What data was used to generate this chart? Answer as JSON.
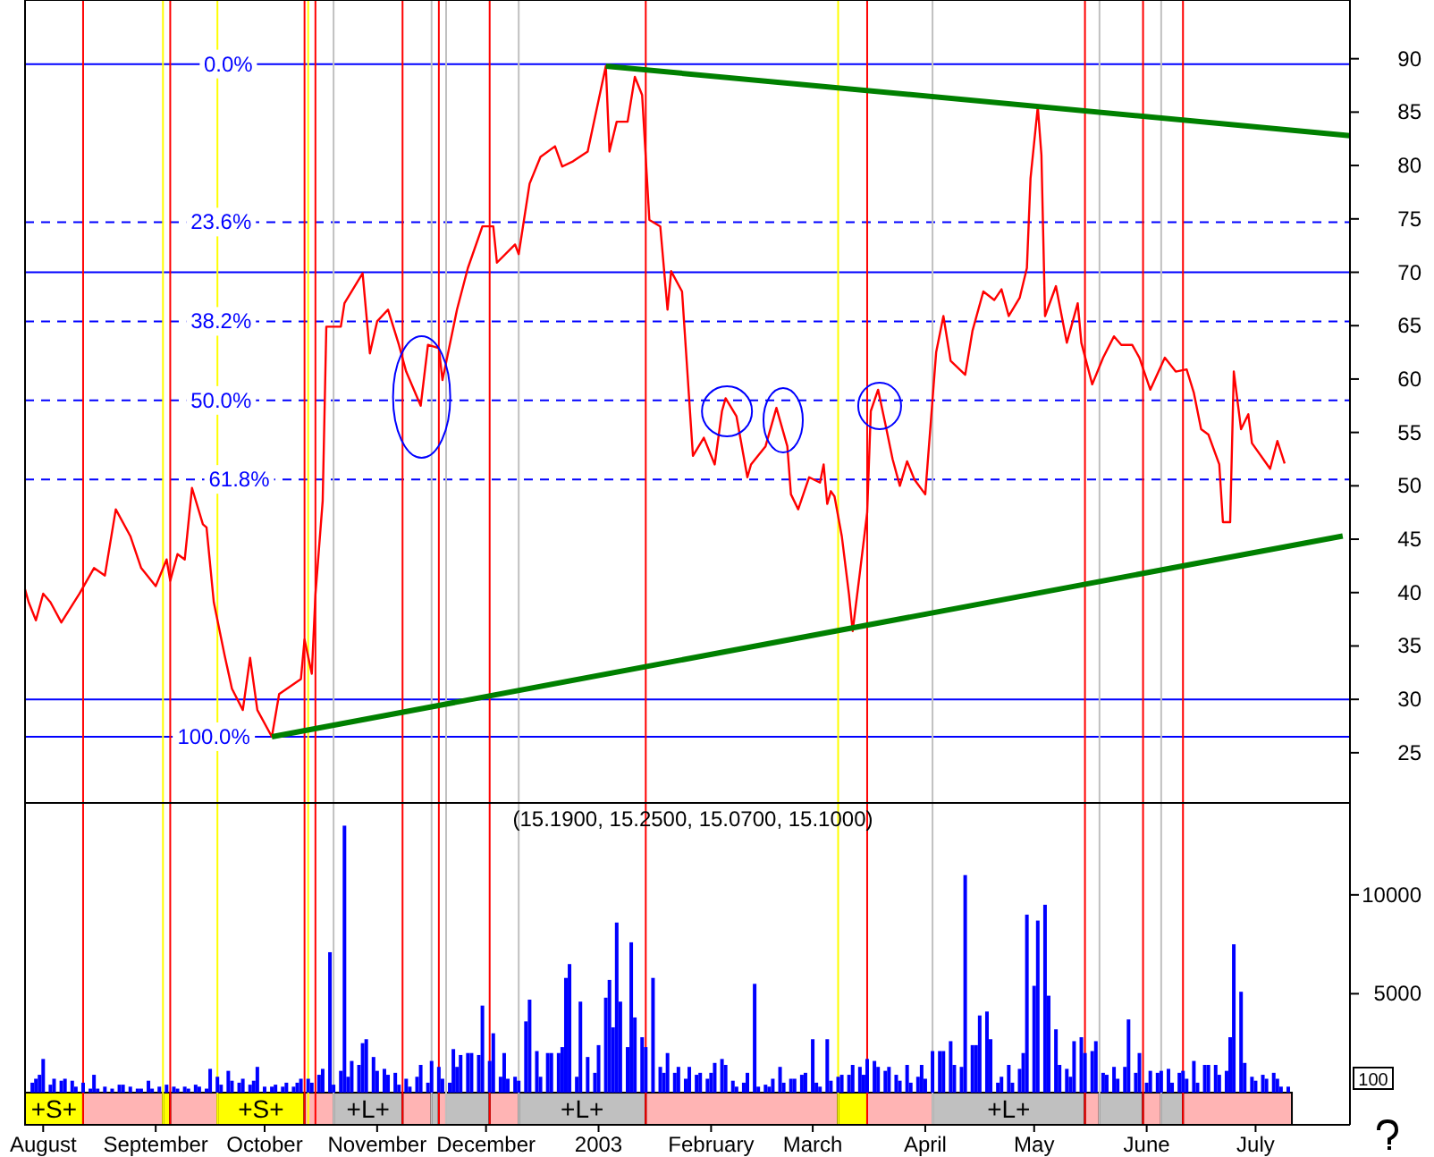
{
  "chart_data": [
    {
      "type": "line",
      "xlim": [
        "2002-07-27",
        "2003-07-27"
      ],
      "ylim": [
        20.3,
        95.5
      ],
      "yticks": [
        25,
        30,
        35,
        40,
        45,
        50,
        55,
        60,
        65,
        70,
        75,
        80,
        85,
        90
      ],
      "tick_labels": "y",
      "annotations": [
        {
          "text": "0.0%",
          "x": "2002-09-21",
          "y": 89.5
        },
        {
          "text": "23.6%",
          "x": "2002-09-19",
          "y": 74.7
        },
        {
          "text": "38.2%",
          "x": "2002-09-19",
          "y": 65.4
        },
        {
          "text": "50.0%",
          "x": "2002-09-19",
          "y": 58.0
        },
        {
          "text": "61.8%",
          "x": "2002-09-24",
          "y": 50.6
        },
        {
          "text": "100.0%",
          "x": "2002-09-17",
          "y": 26.5
        }
      ],
      "series": [
        {
          "color": "#ff0000",
          "x": [
            "2002-07-27",
            "2002-07-28",
            "2002-07-30",
            "2002-08-01",
            "2002-08-03",
            "2002-08-06",
            "2002-08-11",
            "2002-08-15",
            "2002-08-18",
            "2002-08-21",
            "2002-08-25",
            "2002-08-28",
            "2002-09-01",
            "2002-09-04",
            "2002-09-05",
            "2002-09-07",
            "2002-09-09",
            "2002-09-11",
            "2002-09-14",
            "2002-09-15",
            "2002-09-17",
            "2002-09-20",
            "2002-09-22",
            "2002-09-25",
            "2002-09-27",
            "2002-09-29",
            "2002-10-03",
            "2002-10-05",
            "2002-10-11",
            "2002-10-12",
            "2002-10-14",
            "2002-10-15",
            "2002-10-17",
            "2002-10-18",
            "2002-10-22",
            "2002-10-23",
            "2002-10-28",
            "2002-10-30",
            "2002-11-01",
            "2002-11-04",
            "2002-11-07",
            "2002-11-09",
            "2002-11-13",
            "2002-11-15",
            "2002-11-18",
            "2002-11-19",
            "2002-11-23",
            "2002-11-26",
            "2002-11-30",
            "2002-12-03",
            "2002-12-04",
            "2002-12-09",
            "2002-12-10",
            "2002-12-13",
            "2002-12-16",
            "2002-12-20",
            "2002-12-22",
            "2002-12-25",
            "2002-12-29",
            "2003-01-03",
            "2003-01-04",
            "2003-01-06",
            "2003-01-09",
            "2003-01-11",
            "2003-01-13",
            "2003-01-15",
            "2003-01-18",
            "2003-01-20",
            "2003-01-21",
            "2003-01-24",
            "2003-01-27",
            "2003-01-30",
            "2003-02-02",
            "2003-02-04",
            "2003-02-05",
            "2003-02-08",
            "2003-02-11",
            "2003-02-12",
            "2003-02-16",
            "2003-02-19",
            "2003-02-22",
            "2003-02-23",
            "2003-02-25",
            "2003-02-28",
            "2003-03-03",
            "2003-03-04",
            "2003-03-05",
            "2003-03-06",
            "2003-03-07",
            "2003-03-09",
            "2003-03-11",
            "2003-03-12",
            "2003-03-14",
            "2003-03-16",
            "2003-03-17",
            "2003-03-19",
            "2003-03-21",
            "2003-03-23",
            "2003-03-25",
            "2003-03-27",
            "2003-03-29",
            "2003-04-01",
            "2003-04-04",
            "2003-04-06",
            "2003-04-08",
            "2003-04-12",
            "2003-04-14",
            "2003-04-17",
            "2003-04-20",
            "2003-04-22",
            "2003-04-24",
            "2003-04-27",
            "2003-04-29",
            "2003-04-30",
            "2003-05-02",
            "2003-05-03",
            "2003-05-04",
            "2003-05-07",
            "2003-05-10",
            "2003-05-13",
            "2003-05-14",
            "2003-05-17",
            "2003-05-20",
            "2003-05-23",
            "2003-05-25",
            "2003-05-28",
            "2003-05-30",
            "2003-06-02",
            "2003-06-06",
            "2003-06-09",
            "2003-06-12",
            "2003-06-14",
            "2003-06-16",
            "2003-06-18",
            "2003-06-21",
            "2003-06-22",
            "2003-06-24",
            "2003-06-25",
            "2003-06-27",
            "2003-06-29",
            "2003-06-30",
            "2003-07-05",
            "2003-07-07",
            "2003-07-09"
          ],
          "values": [
            40.3,
            39.1,
            37.4,
            39.9,
            39.1,
            37.2,
            39.9,
            42.3,
            41.6,
            47.8,
            45.3,
            42.3,
            40.6,
            43.1,
            41.1,
            43.6,
            43.1,
            49.8,
            46.4,
            46.1,
            39.1,
            34.1,
            31.0,
            29.0,
            33.9,
            29.0,
            26.5,
            30.5,
            31.9,
            35.6,
            32.4,
            39.8,
            48.6,
            64.9,
            64.9,
            67.1,
            69.9,
            62.4,
            65.4,
            66.5,
            63.2,
            60.7,
            57.5,
            63.2,
            62.9,
            59.9,
            66.5,
            70.4,
            74.3,
            74.3,
            70.9,
            72.6,
            71.7,
            78.3,
            80.8,
            81.8,
            79.9,
            80.4,
            81.3,
            89.3,
            81.3,
            84.1,
            84.1,
            88.3,
            86.6,
            74.9,
            74.3,
            66.5,
            70.1,
            68.2,
            52.8,
            54.5,
            52.0,
            57.0,
            58.2,
            56.5,
            50.8,
            52.0,
            53.7,
            57.3,
            53.7,
            49.2,
            47.8,
            50.8,
            50.3,
            52.0,
            48.3,
            49.5,
            49.0,
            45.3,
            39.8,
            36.4,
            41.9,
            47.5,
            57.0,
            59.0,
            55.8,
            52.5,
            50.0,
            52.3,
            50.6,
            49.2,
            62.5,
            65.9,
            61.7,
            60.4,
            64.5,
            68.2,
            67.4,
            68.4,
            65.9,
            67.6,
            70.4,
            78.8,
            85.5,
            81.0,
            65.9,
            68.7,
            63.4,
            67.1,
            63.4,
            59.5,
            62.0,
            64.0,
            63.2,
            63.2,
            62.0,
            59.0,
            62.0,
            60.7,
            60.9,
            58.7,
            55.3,
            54.8,
            52.0,
            46.6,
            46.6,
            60.7,
            55.3,
            56.7,
            54.0,
            51.6,
            54.2,
            52.1
          ]
        },
        {
          "color": "#008000",
          "x": [
            "2003-01-03",
            "2003-07-27"
          ],
          "values": [
            89.3,
            82.8
          ]
        },
        {
          "color": "#008000",
          "x": [
            "2002-10-03",
            "2003-07-25"
          ],
          "values": [
            26.5,
            45.3
          ]
        }
      ],
      "ref_lines": [
        {
          "axis": "y",
          "value": 89.5,
          "color": "#0000ff",
          "line_style": "solid"
        },
        {
          "axis": "y",
          "value": 74.7,
          "color": "#0000ff",
          "line_style": "dashed"
        },
        {
          "axis": "y",
          "value": 65.4,
          "color": "#0000ff",
          "line_style": "dashed"
        },
        {
          "axis": "y",
          "value": 58.0,
          "color": "#0000ff",
          "line_style": "dashed"
        },
        {
          "axis": "y",
          "value": 50.6,
          "color": "#0000ff",
          "line_style": "dashed"
        },
        {
          "axis": "y",
          "value": 26.5,
          "color": "#0000ff",
          "line_style": "solid"
        },
        {
          "axis": "y",
          "value": 70,
          "color": "#0000ff",
          "line_style": "solid"
        },
        {
          "axis": "y",
          "value": 30,
          "color": "#0000ff",
          "line_style": "solid"
        },
        {
          "axis": "x",
          "value": "2002-08-12",
          "color": "#ff0000"
        },
        {
          "axis": "x",
          "value": "2002-09-03",
          "color": "#ffff00"
        },
        {
          "axis": "x",
          "value": "2002-09-05",
          "color": "#ff0000"
        },
        {
          "axis": "x",
          "value": "2002-09-18",
          "color": "#ffff00"
        },
        {
          "axis": "x",
          "value": "2002-10-12",
          "color": "#ff0000"
        },
        {
          "axis": "x",
          "value": "2002-10-13",
          "color": "#ffff00"
        },
        {
          "axis": "x",
          "value": "2002-10-15",
          "color": "#ff0000"
        },
        {
          "axis": "x",
          "value": "2002-10-20",
          "color": "#c0c0c0"
        },
        {
          "axis": "x",
          "value": "2002-11-08",
          "color": "#ff0000"
        },
        {
          "axis": "x",
          "value": "2002-11-16",
          "color": "#c0c0c0"
        },
        {
          "axis": "x",
          "value": "2002-11-18",
          "color": "#ff0000"
        },
        {
          "axis": "x",
          "value": "2002-11-20",
          "color": "#c0c0c0"
        },
        {
          "axis": "x",
          "value": "2002-12-02",
          "color": "#ff0000"
        },
        {
          "axis": "x",
          "value": "2002-12-10",
          "color": "#c0c0c0"
        },
        {
          "axis": "x",
          "value": "2003-01-14",
          "color": "#ff0000"
        },
        {
          "axis": "x",
          "value": "2003-03-08",
          "color": "#ffff00"
        },
        {
          "axis": "x",
          "value": "2003-03-16",
          "color": "#ff0000"
        },
        {
          "axis": "x",
          "value": "2003-04-03",
          "color": "#c0c0c0"
        },
        {
          "axis": "x",
          "value": "2003-05-15",
          "color": "#ff0000"
        },
        {
          "axis": "x",
          "value": "2003-05-19",
          "color": "#c0c0c0"
        },
        {
          "axis": "x",
          "value": "2003-05-31",
          "color": "#ff0000"
        },
        {
          "axis": "x",
          "value": "2003-06-05",
          "color": "#c0c0c0"
        },
        {
          "axis": "x",
          "value": "2003-06-11",
          "color": "#ff0000"
        }
      ]
    },
    {
      "type": "bar",
      "title": "(15.1900, 15.2500, 15.0700, 15.1000)",
      "xlim": [
        "2002-07-27",
        "2003-07-27"
      ],
      "ylim": [
        -1630,
        14650
      ],
      "yticks": [
        5000,
        10000
      ],
      "annotations": [
        "100"
      ],
      "series": [
        {
          "color": "#0000ff",
          "x": [
            "2002-07-29",
            "2002-07-30",
            "2002-07-31",
            "2002-08-01",
            "2002-08-03",
            "2002-08-04",
            "2002-08-06",
            "2002-08-07",
            "2002-08-09",
            "2002-08-10",
            "2002-08-12",
            "2002-08-14",
            "2002-08-15",
            "2002-08-16",
            "2002-08-18",
            "2002-08-20",
            "2002-08-22",
            "2002-08-23",
            "2002-08-25",
            "2002-08-27",
            "2002-08-28",
            "2002-08-30",
            "2002-08-31",
            "2002-09-02",
            "2002-09-04",
            "2002-09-06",
            "2002-09-07",
            "2002-09-09",
            "2002-09-10",
            "2002-09-12",
            "2002-09-13",
            "2002-09-15",
            "2002-09-16",
            "2002-09-18",
            "2002-09-19",
            "2002-09-21",
            "2002-09-22",
            "2002-09-24",
            "2002-09-25",
            "2002-09-27",
            "2002-09-28",
            "2002-09-29",
            "2002-10-01",
            "2002-10-03",
            "2002-10-04",
            "2002-10-06",
            "2002-10-07",
            "2002-10-09",
            "2002-10-10",
            "2002-10-11",
            "2002-10-13",
            "2002-10-14",
            "2002-10-16",
            "2002-10-17",
            "2002-10-19",
            "2002-10-20",
            "2002-10-22",
            "2002-10-23",
            "2002-10-24",
            "2002-10-25",
            "2002-10-27",
            "2002-10-28",
            "2002-10-29",
            "2002-10-31",
            "2002-11-01",
            "2002-11-03",
            "2002-11-04",
            "2002-11-06",
            "2002-11-07",
            "2002-11-09",
            "2002-11-10",
            "2002-11-12",
            "2002-11-13",
            "2002-11-15",
            "2002-11-16",
            "2002-11-18",
            "2002-11-19",
            "2002-11-21",
            "2002-11-22",
            "2002-11-23",
            "2002-11-24",
            "2002-11-26",
            "2002-11-27",
            "2002-11-29",
            "2002-11-30",
            "2002-12-02",
            "2002-12-03",
            "2002-12-05",
            "2002-12-06",
            "2002-12-07",
            "2002-12-09",
            "2002-12-10",
            "2002-12-12",
            "2002-12-13",
            "2002-12-15",
            "2002-12-16",
            "2002-12-18",
            "2002-12-19",
            "2002-12-21",
            "2002-12-22",
            "2002-12-23",
            "2002-12-24",
            "2002-12-26",
            "2002-12-27",
            "2002-12-29",
            "2002-12-31",
            "2003-01-01",
            "2003-01-03",
            "2003-01-04",
            "2003-01-05",
            "2003-01-06",
            "2003-01-07",
            "2003-01-09",
            "2003-01-10",
            "2003-01-11",
            "2003-01-13",
            "2003-01-14",
            "2003-01-16",
            "2003-01-18",
            "2003-01-19",
            "2003-01-20",
            "2003-01-22",
            "2003-01-23",
            "2003-01-25",
            "2003-01-26",
            "2003-01-28",
            "2003-01-29",
            "2003-01-31",
            "2003-02-01",
            "2003-02-02",
            "2003-02-04",
            "2003-02-05",
            "2003-02-07",
            "2003-02-08",
            "2003-02-10",
            "2003-02-11",
            "2003-02-13",
            "2003-02-14",
            "2003-02-16",
            "2003-02-17",
            "2003-02-18",
            "2003-02-20",
            "2003-02-21",
            "2003-02-23",
            "2003-02-24",
            "2003-02-26",
            "2003-02-27",
            "2003-03-01",
            "2003-03-02",
            "2003-03-03",
            "2003-03-05",
            "2003-03-06",
            "2003-03-08",
            "2003-03-09",
            "2003-03-11",
            "2003-03-12",
            "2003-03-14",
            "2003-03-15",
            "2003-03-16",
            "2003-03-18",
            "2003-03-19",
            "2003-03-21",
            "2003-03-22",
            "2003-03-24",
            "2003-03-25",
            "2003-03-27",
            "2003-03-28",
            "2003-03-30",
            "2003-03-31",
            "2003-04-01",
            "2003-04-03",
            "2003-04-05",
            "2003-04-06",
            "2003-04-08",
            "2003-04-09",
            "2003-04-11",
            "2003-04-12",
            "2003-04-14",
            "2003-04-15",
            "2003-04-16",
            "2003-04-18",
            "2003-04-19",
            "2003-04-21",
            "2003-04-22",
            "2003-04-24",
            "2003-04-25",
            "2003-04-27",
            "2003-04-28",
            "2003-04-29",
            "2003-05-01",
            "2003-05-02",
            "2003-05-04",
            "2003-05-05",
            "2003-05-07",
            "2003-05-08",
            "2003-05-10",
            "2003-05-11",
            "2003-05-12",
            "2003-05-14",
            "2003-05-15",
            "2003-05-17",
            "2003-05-18",
            "2003-05-20",
            "2003-05-21",
            "2003-05-23",
            "2003-05-24",
            "2003-05-26",
            "2003-05-27",
            "2003-05-29",
            "2003-05-30",
            "2003-06-01",
            "2003-06-02",
            "2003-06-04",
            "2003-06-05",
            "2003-06-07",
            "2003-06-08",
            "2003-06-10",
            "2003-06-11",
            "2003-06-12",
            "2003-06-14",
            "2003-06-15",
            "2003-06-17",
            "2003-06-18",
            "2003-06-20",
            "2003-06-21",
            "2003-06-23",
            "2003-06-24",
            "2003-06-25",
            "2003-06-27",
            "2003-06-28",
            "2003-06-30",
            "2003-07-01",
            "2003-07-03",
            "2003-07-04",
            "2003-07-06",
            "2003-07-07",
            "2003-07-08",
            "2003-07-10"
          ],
          "values": [
            500,
            700,
            900,
            1700,
            400,
            700,
            600,
            700,
            600,
            300,
            500,
            200,
            900,
            200,
            300,
            200,
            400,
            400,
            300,
            200,
            200,
            600,
            200,
            300,
            400,
            300,
            200,
            300,
            200,
            400,
            300,
            200,
            1200,
            800,
            400,
            1100,
            600,
            500,
            700,
            400,
            600,
            1300,
            300,
            300,
            400,
            300,
            500,
            300,
            500,
            700,
            700,
            500,
            900,
            1200,
            7100,
            400,
            1100,
            13500,
            800,
            1600,
            1400,
            2500,
            2700,
            1800,
            1100,
            1200,
            900,
            1000,
            400,
            700,
            300,
            800,
            1400,
            500,
            1600,
            1300,
            700,
            500,
            2200,
            1300,
            1900,
            2000,
            2000,
            1900,
            4400,
            1600,
            3000,
            800,
            2000,
            700,
            800,
            600,
            3600,
            4700,
            2100,
            800,
            2000,
            2000,
            2000,
            2300,
            5800,
            6500,
            800,
            4600,
            1800,
            1000,
            2400,
            4800,
            5700,
            3300,
            8600,
            4600,
            2300,
            7600,
            3800,
            2800,
            2300,
            5800,
            1300,
            1000,
            2000,
            1000,
            1300,
            700,
            1300,
            900,
            1000,
            700,
            1000,
            1500,
            1700,
            1400,
            600,
            300,
            500,
            1000,
            5500,
            300,
            400,
            300,
            700,
            1300,
            500,
            700,
            700,
            900,
            1000,
            2700,
            500,
            300,
            2700,
            600,
            800,
            900,
            900,
            1400,
            1300,
            900,
            1700,
            1600,
            1300,
            1100,
            1300,
            900,
            600,
            1400,
            500,
            800,
            1400,
            700,
            2100,
            2100,
            2100,
            2600,
            1400,
            1300,
            11000,
            2400,
            2400,
            3900,
            4100,
            2700,
            500,
            800,
            1400,
            500,
            1200,
            2000,
            9000,
            5400,
            8700,
            9500,
            4900,
            3200,
            1400,
            1200,
            800,
            2600,
            2800,
            2000,
            2100,
            2600,
            1000,
            900,
            1300,
            700,
            1300,
            3700,
            1000,
            2000,
            500,
            1100,
            1000,
            1100,
            1200,
            500,
            1000,
            1100,
            700,
            1600,
            500,
            1400,
            1400,
            1400,
            900,
            1100,
            2800,
            7500,
            5100,
            1500,
            800,
            600,
            900,
            700,
            1000,
            700,
            300,
            300
          ]
        }
      ],
      "ref_lines": [
        {
          "axis": "x",
          "value": "2002-08-12",
          "color": "#ff0000"
        },
        {
          "axis": "x",
          "value": "2002-09-03",
          "color": "#ffff00"
        },
        {
          "axis": "x",
          "value": "2002-09-05",
          "color": "#ff0000"
        },
        {
          "axis": "x",
          "value": "2002-09-18",
          "color": "#ffff00"
        },
        {
          "axis": "x",
          "value": "2002-10-12",
          "color": "#ff0000"
        },
        {
          "axis": "x",
          "value": "2002-10-13",
          "color": "#ffff00"
        },
        {
          "axis": "x",
          "value": "2002-10-15",
          "color": "#ff0000"
        },
        {
          "axis": "x",
          "value": "2002-10-20",
          "color": "#c0c0c0"
        },
        {
          "axis": "x",
          "value": "2002-11-08",
          "color": "#ff0000"
        },
        {
          "axis": "x",
          "value": "2002-11-16",
          "color": "#c0c0c0"
        },
        {
          "axis": "x",
          "value": "2002-11-18",
          "color": "#ff0000"
        },
        {
          "axis": "x",
          "value": "2002-11-20",
          "color": "#c0c0c0"
        },
        {
          "axis": "x",
          "value": "2002-12-02",
          "color": "#ff0000"
        },
        {
          "axis": "x",
          "value": "2002-12-10",
          "color": "#c0c0c0"
        },
        {
          "axis": "x",
          "value": "2003-01-14",
          "color": "#ff0000"
        },
        {
          "axis": "x",
          "value": "2003-03-08",
          "color": "#ffff00"
        },
        {
          "axis": "x",
          "value": "2003-03-16",
          "color": "#ff0000"
        },
        {
          "axis": "x",
          "value": "2003-04-03",
          "color": "#c0c0c0"
        },
        {
          "axis": "x",
          "value": "2003-05-15",
          "color": "#ff0000"
        },
        {
          "axis": "x",
          "value": "2003-05-19",
          "color": "#c0c0c0"
        },
        {
          "axis": "x",
          "value": "2003-05-31",
          "color": "#ff0000"
        },
        {
          "axis": "x",
          "value": "2003-06-05",
          "color": "#c0c0c0"
        },
        {
          "axis": "x",
          "value": "2003-06-11",
          "color": "#ff0000"
        }
      ],
      "xticks": [
        {
          "value": "2002-08-01",
          "label": "August"
        },
        {
          "value": "2002-09-01",
          "label": "September"
        },
        {
          "value": "2002-10-01",
          "label": "October"
        },
        {
          "value": "2002-11-01",
          "label": "November"
        },
        {
          "value": "2002-12-01",
          "label": "December"
        },
        {
          "value": "2003-01-01",
          "label": "2003"
        },
        {
          "value": "2003-02-01",
          "label": "February"
        },
        {
          "value": "2003-03-01",
          "label": "March"
        },
        {
          "value": "2003-04-01",
          "label": "April"
        },
        {
          "value": "2003-05-01",
          "label": "May"
        },
        {
          "value": "2003-06-01",
          "label": "June"
        },
        {
          "value": "2003-07-01",
          "label": "July"
        }
      ],
      "bands": [
        {
          "axis": "x",
          "from": "2002-07-27",
          "to": "2002-08-12",
          "label": "+S+",
          "color": "#ffff00"
        },
        {
          "axis": "x",
          "from": "2002-08-12",
          "to": "2002-09-03",
          "color": "#ffb4b4"
        },
        {
          "axis": "x",
          "from": "2002-09-03",
          "to": "2002-09-05",
          "color": "#ffff00"
        },
        {
          "axis": "x",
          "from": "2002-09-05",
          "to": "2002-09-18",
          "color": "#ffb4b4"
        },
        {
          "axis": "x",
          "from": "2002-09-18",
          "to": "2002-10-12",
          "label": "+S+",
          "color": "#ffff00"
        },
        {
          "axis": "x",
          "from": "2002-10-12",
          "to": "2002-10-20",
          "color": "#ffb4b4"
        },
        {
          "axis": "x",
          "from": "2002-10-20",
          "to": "2002-11-08",
          "label": "+L+",
          "color": "#c0c0c0"
        },
        {
          "axis": "x",
          "from": "2002-11-08",
          "to": "2002-11-16",
          "color": "#ffb4b4"
        },
        {
          "axis": "x",
          "from": "2002-11-16",
          "to": "2002-11-18",
          "color": "#c0c0c0"
        },
        {
          "axis": "x",
          "from": "2002-11-18",
          "to": "2002-11-20",
          "color": "#ffb4b4"
        },
        {
          "axis": "x",
          "from": "2002-11-20",
          "to": "2002-12-02",
          "color": "#c0c0c0"
        },
        {
          "axis": "x",
          "from": "2002-12-02",
          "to": "2002-12-10",
          "color": "#ffb4b4"
        },
        {
          "axis": "x",
          "from": "2002-12-10",
          "to": "2003-01-14",
          "label": "+L+",
          "color": "#c0c0c0"
        },
        {
          "axis": "x",
          "from": "2003-01-14",
          "to": "2003-03-08",
          "color": "#ffb4b4"
        },
        {
          "axis": "x",
          "from": "2003-03-08",
          "to": "2003-03-16",
          "color": "#ffff00"
        },
        {
          "axis": "x",
          "from": "2003-03-16",
          "to": "2003-04-03",
          "color": "#ffb4b4"
        },
        {
          "axis": "x",
          "from": "2003-04-03",
          "to": "2003-05-15",
          "label": "+L+",
          "color": "#c0c0c0"
        },
        {
          "axis": "x",
          "from": "2003-05-15",
          "to": "2003-05-19",
          "color": "#ffb4b4"
        },
        {
          "axis": "x",
          "from": "2003-05-19",
          "to": "2003-05-31",
          "color": "#c0c0c0"
        },
        {
          "axis": "x",
          "from": "2003-05-31",
          "to": "2003-06-05",
          "color": "#ffb4b4"
        },
        {
          "axis": "x",
          "from": "2003-06-05",
          "to": "2003-06-11",
          "color": "#c0c0c0"
        },
        {
          "axis": "x",
          "from": "2003-06-11",
          "to": "2003-07-11",
          "color": "#ffb4b4"
        }
      ]
    }
  ]
}
